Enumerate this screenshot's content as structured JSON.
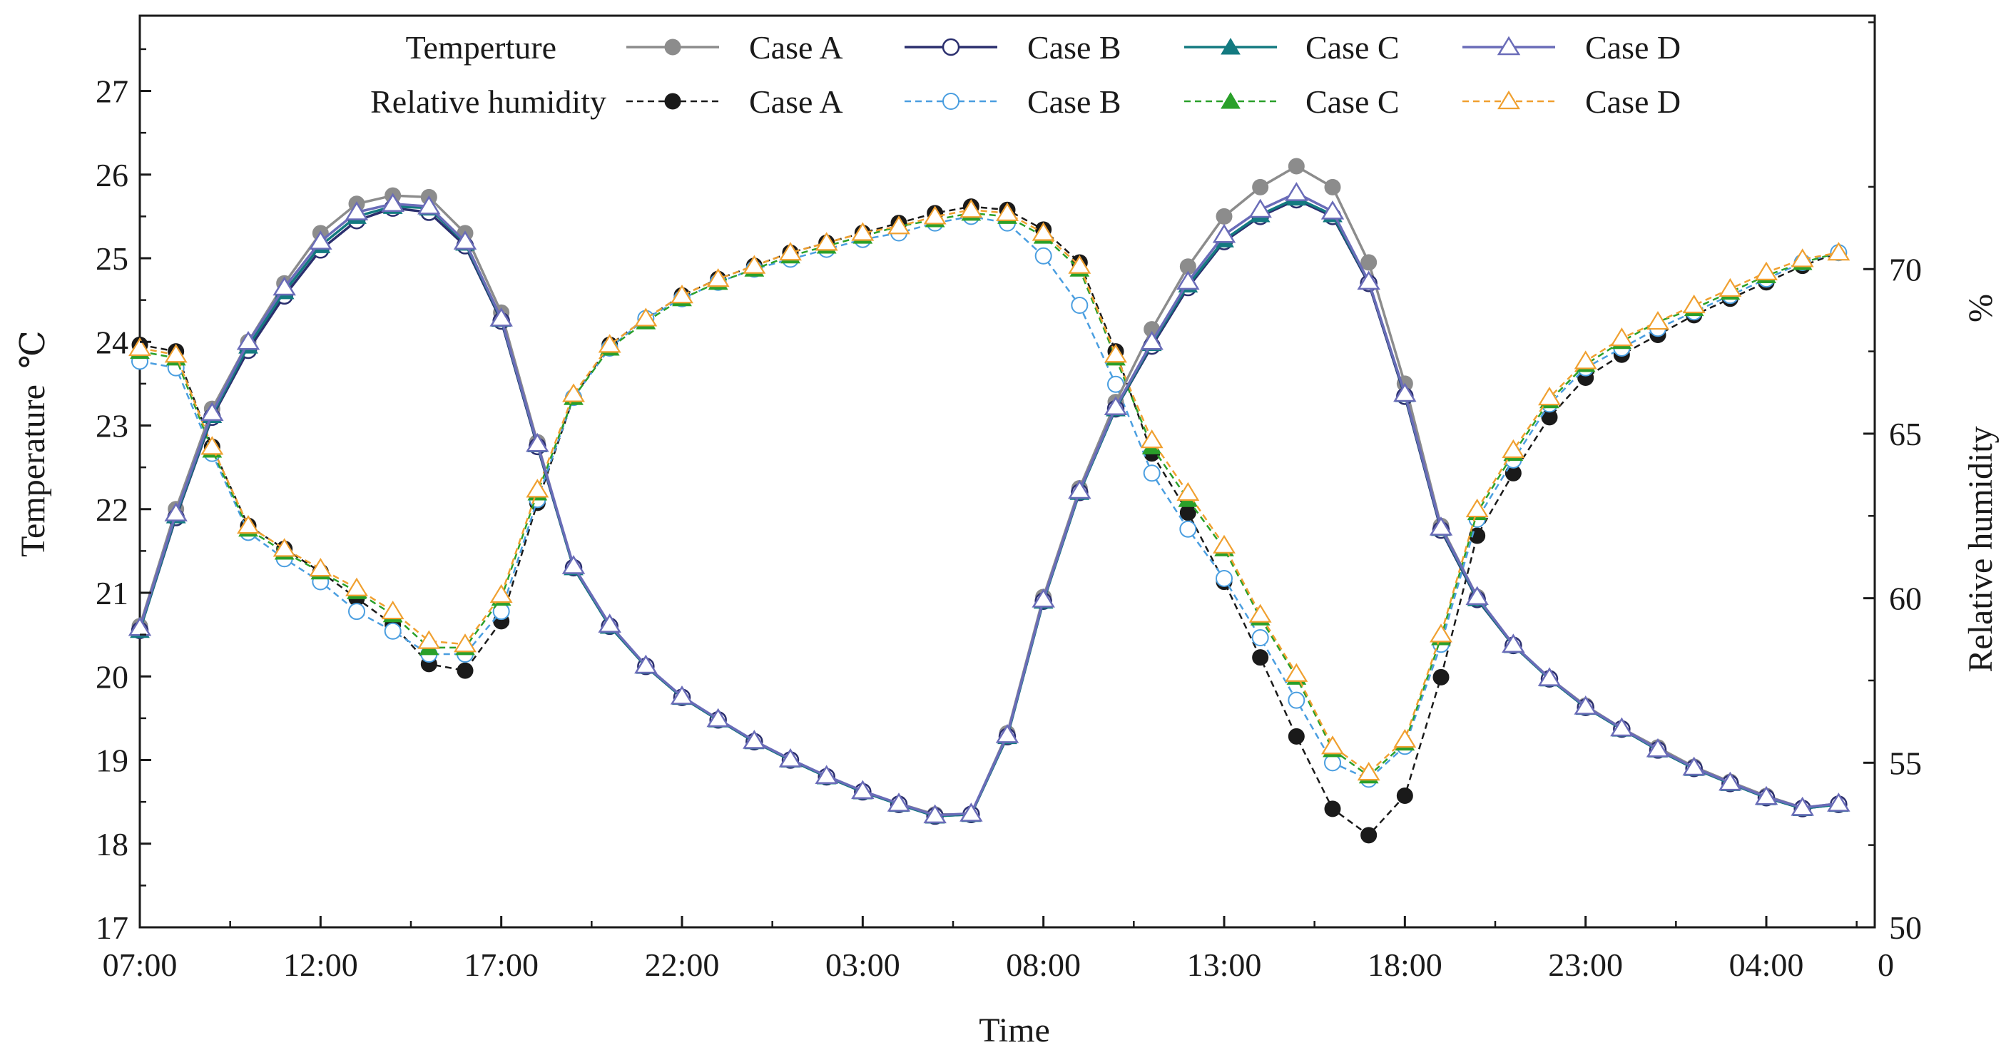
{
  "chart_data": {
    "type": "line",
    "title": "",
    "xlabel": "Time",
    "ylabel_left": "Temperature",
    "ylabel_left_unit": "℃",
    "ylabel_right": "Relative humidity",
    "ylabel_right_unit": "%",
    "x_range": [
      0,
      48
    ],
    "x_ticks": [
      {
        "x": 0,
        "label": "07:00"
      },
      {
        "x": 5,
        "label": "12:00"
      },
      {
        "x": 10,
        "label": "17:00"
      },
      {
        "x": 15,
        "label": "22:00"
      },
      {
        "x": 20,
        "label": "03:00"
      },
      {
        "x": 25,
        "label": "08:00"
      },
      {
        "x": 30,
        "label": "13:00"
      },
      {
        "x": 35,
        "label": "18:00"
      },
      {
        "x": 40,
        "label": "23:00"
      },
      {
        "x": 45,
        "label": "04:00"
      },
      {
        "x": 48,
        "label": "0"
      }
    ],
    "ylim_left": [
      17,
      27.9
    ],
    "yticks_left": [
      17,
      18,
      19,
      20,
      21,
      22,
      23,
      24,
      25,
      26,
      27
    ],
    "ylim_right": [
      50,
      77.7
    ],
    "yticks_right": [
      50,
      55,
      60,
      65,
      70
    ],
    "legend": {
      "group_temperature": "Temperture",
      "group_humidity": "Relative humidity",
      "case_labels": [
        "Case A",
        "Case B",
        "Case C",
        "Case D"
      ]
    },
    "colors": {
      "A_temp": "#8c8c8c",
      "B_temp": "#2b2f6e",
      "C_temp": "#137a80",
      "D_temp": "#6a6cb8",
      "A_rh": "#1a1a1a",
      "B_rh": "#4a9ee0",
      "C_rh": "#2aa02a",
      "D_rh": "#f0a030"
    },
    "temperature_series": [
      {
        "name": "Case A",
        "values": [
          20.6,
          22.0,
          23.2,
          24.0,
          24.7,
          25.3,
          25.65,
          25.75,
          25.73,
          25.3,
          24.35,
          22.8,
          21.3,
          20.6,
          20.12,
          19.75,
          19.48,
          19.22,
          19.0,
          18.8,
          18.62,
          18.48,
          18.35,
          18.35,
          19.32,
          20.95,
          22.25,
          23.28,
          24.15,
          24.9,
          25.5,
          25.85,
          26.1,
          25.85,
          24.95,
          23.5,
          21.8,
          20.95,
          20.38,
          19.98,
          19.65,
          19.38,
          19.15,
          18.92,
          18.74,
          18.57,
          18.43,
          18.48
        ]
      },
      {
        "name": "Case B",
        "values": [
          20.55,
          21.9,
          23.1,
          23.9,
          24.55,
          25.1,
          25.45,
          25.6,
          25.55,
          25.15,
          24.25,
          22.75,
          21.3,
          20.6,
          20.12,
          19.75,
          19.48,
          19.22,
          19.0,
          18.8,
          18.62,
          18.47,
          18.33,
          18.35,
          19.28,
          20.9,
          22.2,
          23.2,
          23.95,
          24.65,
          25.2,
          25.5,
          25.7,
          25.5,
          24.7,
          23.35,
          21.75,
          20.92,
          20.37,
          19.97,
          19.63,
          19.37,
          19.12,
          18.9,
          18.72,
          18.55,
          18.42,
          18.47
        ]
      },
      {
        "name": "Case C",
        "values": [
          20.55,
          21.92,
          23.12,
          23.95,
          24.6,
          25.15,
          25.5,
          25.62,
          25.6,
          25.18,
          24.27,
          22.77,
          21.3,
          20.6,
          20.12,
          19.75,
          19.48,
          19.22,
          19.0,
          18.8,
          18.62,
          18.47,
          18.33,
          18.35,
          19.28,
          20.9,
          22.2,
          23.2,
          23.98,
          24.68,
          25.22,
          25.52,
          25.72,
          25.52,
          24.72,
          23.37,
          21.77,
          20.93,
          20.37,
          19.97,
          19.63,
          19.37,
          19.12,
          18.9,
          18.72,
          18.55,
          18.42,
          18.47
        ]
      },
      {
        "name": "Case D",
        "values": [
          20.58,
          21.95,
          23.15,
          24.0,
          24.65,
          25.2,
          25.55,
          25.65,
          25.62,
          25.2,
          24.28,
          22.78,
          21.32,
          20.62,
          20.13,
          19.76,
          19.49,
          19.23,
          19.01,
          18.81,
          18.63,
          18.48,
          18.34,
          18.36,
          19.3,
          20.92,
          22.22,
          23.22,
          24.0,
          24.72,
          25.28,
          25.58,
          25.78,
          25.56,
          24.72,
          23.38,
          21.78,
          20.95,
          20.38,
          19.98,
          19.64,
          19.38,
          19.13,
          18.91,
          18.73,
          18.56,
          18.43,
          18.48
        ]
      }
    ],
    "humidity_series": [
      {
        "name": "Case A",
        "values": [
          67.7,
          67.5,
          64.6,
          62.2,
          61.5,
          60.8,
          60.0,
          59.2,
          58.0,
          57.8,
          59.3,
          62.9,
          66.1,
          67.7,
          68.5,
          69.2,
          69.7,
          70.1,
          70.5,
          70.8,
          71.1,
          71.4,
          71.7,
          71.9,
          71.8,
          71.2,
          70.2,
          67.5,
          64.4,
          62.6,
          60.5,
          58.2,
          55.8,
          53.6,
          52.8,
          54.0,
          57.6,
          61.9,
          63.8,
          65.5,
          66.7,
          67.4,
          68.0,
          68.6,
          69.1,
          69.6,
          70.1,
          70.5
        ]
      },
      {
        "name": "Case B",
        "values": [
          67.2,
          67.0,
          64.4,
          62.0,
          61.2,
          60.5,
          59.6,
          59.0,
          58.3,
          58.3,
          59.6,
          63.0,
          66.1,
          67.6,
          68.5,
          69.1,
          69.6,
          70.0,
          70.3,
          70.6,
          70.9,
          71.1,
          71.4,
          71.6,
          71.4,
          70.4,
          68.9,
          66.5,
          63.8,
          62.1,
          60.6,
          58.8,
          56.9,
          55.0,
          54.5,
          55.5,
          58.6,
          62.4,
          64.2,
          65.9,
          67.0,
          67.6,
          68.2,
          68.7,
          69.2,
          69.7,
          70.2,
          70.5
        ]
      },
      {
        "name": "Case C",
        "values": [
          67.5,
          67.3,
          64.5,
          62.1,
          61.4,
          60.8,
          60.2,
          59.5,
          58.5,
          58.5,
          60.0,
          63.2,
          66.1,
          67.6,
          68.4,
          69.1,
          69.6,
          70.0,
          70.4,
          70.7,
          71.0,
          71.3,
          71.5,
          71.7,
          71.6,
          71.0,
          70.0,
          67.3,
          64.6,
          63.0,
          61.5,
          59.4,
          57.6,
          55.4,
          54.6,
          55.6,
          58.8,
          62.6,
          64.4,
          66.0,
          67.1,
          67.8,
          68.4,
          68.8,
          69.3,
          69.8,
          70.2,
          70.5
        ]
      },
      {
        "name": "Case D",
        "values": [
          67.6,
          67.4,
          64.6,
          62.2,
          61.5,
          60.9,
          60.3,
          59.6,
          58.7,
          58.6,
          60.1,
          63.3,
          66.2,
          67.7,
          68.5,
          69.2,
          69.7,
          70.1,
          70.5,
          70.8,
          71.1,
          71.3,
          71.6,
          71.8,
          71.7,
          71.1,
          70.1,
          67.4,
          64.8,
          63.2,
          61.6,
          59.5,
          57.7,
          55.5,
          54.7,
          55.7,
          58.9,
          62.7,
          64.5,
          66.1,
          67.2,
          67.9,
          68.4,
          68.9,
          69.4,
          69.9,
          70.3,
          70.5
        ]
      }
    ]
  }
}
